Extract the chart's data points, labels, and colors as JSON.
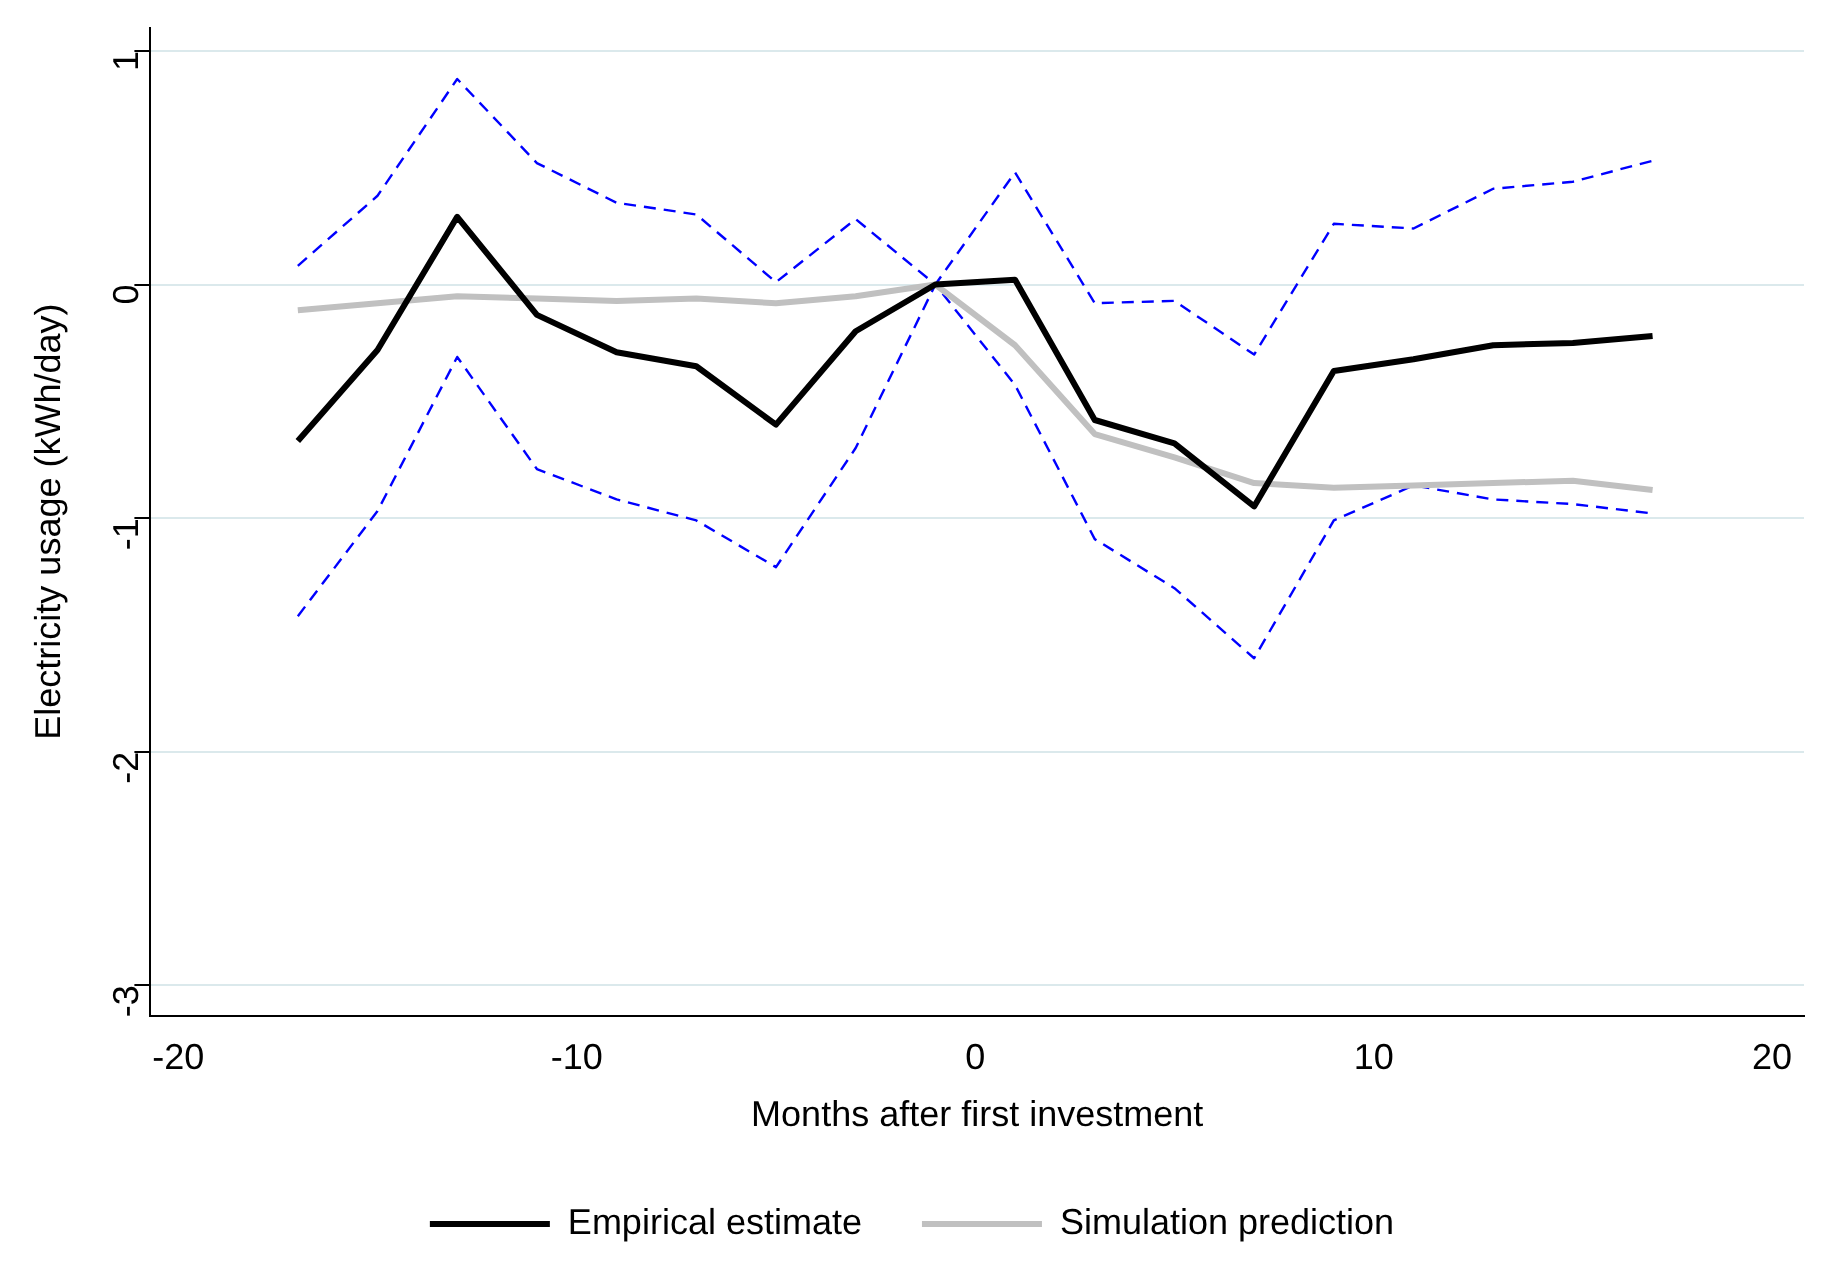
{
  "chart_data": {
    "type": "line",
    "xlabel": "Months after first investment",
    "ylabel": "Electricity usage (kWh/day)",
    "x": [
      -17,
      -15,
      -13,
      -11,
      -9,
      -7,
      -5,
      -3,
      -1,
      1,
      3,
      5,
      7,
      9,
      11,
      13,
      15,
      17
    ],
    "xlim": [
      -20.7,
      20.8
    ],
    "xticks": [
      -20,
      -10,
      0,
      10,
      20
    ],
    "ylim": [
      -3.13,
      1.1
    ],
    "yticks": [
      -3,
      -2,
      -1,
      0,
      1
    ],
    "grid": "y",
    "legend": "bottom",
    "marker": "none",
    "series": [
      {
        "name": "Empirical estimate",
        "color": "#000000",
        "line_style": "solid",
        "values": [
          -0.67,
          -0.28,
          0.29,
          -0.13,
          -0.29,
          -0.35,
          -0.6,
          -0.2,
          0,
          0.02,
          -0.58,
          -0.68,
          -0.95,
          -0.37,
          -0.32,
          -0.26,
          -0.25,
          -0.22
        ]
      },
      {
        "name": "Simulation prediction",
        "color": "#c0c0c0",
        "line_style": "solid",
        "values": [
          -0.11,
          -0.08,
          -0.05,
          -0.06,
          -0.07,
          -0.06,
          -0.08,
          -0.05,
          0,
          -0.26,
          -0.64,
          -0.74,
          -0.85,
          -0.87,
          -0.86,
          -0.85,
          -0.84,
          -0.88
        ]
      },
      {
        "color": "#0000ff",
        "line_style": "dashed",
        "values": [
          0.08,
          0.38,
          0.88,
          0.52,
          0.35,
          0.3,
          0.01,
          0.28,
          0,
          0.48,
          -0.08,
          -0.07,
          -0.3,
          0.26,
          0.24,
          0.41,
          0.44,
          0.53
        ]
      },
      {
        "color": "#0000ff",
        "line_style": "dashed",
        "values": [
          -1.42,
          -0.97,
          -0.31,
          -0.79,
          -0.92,
          -1.01,
          -1.21,
          -0.7,
          0,
          -0.43,
          -1.09,
          -1.3,
          -1.6,
          -1.01,
          -0.86,
          -0.92,
          -0.94,
          -0.98
        ]
      }
    ]
  }
}
